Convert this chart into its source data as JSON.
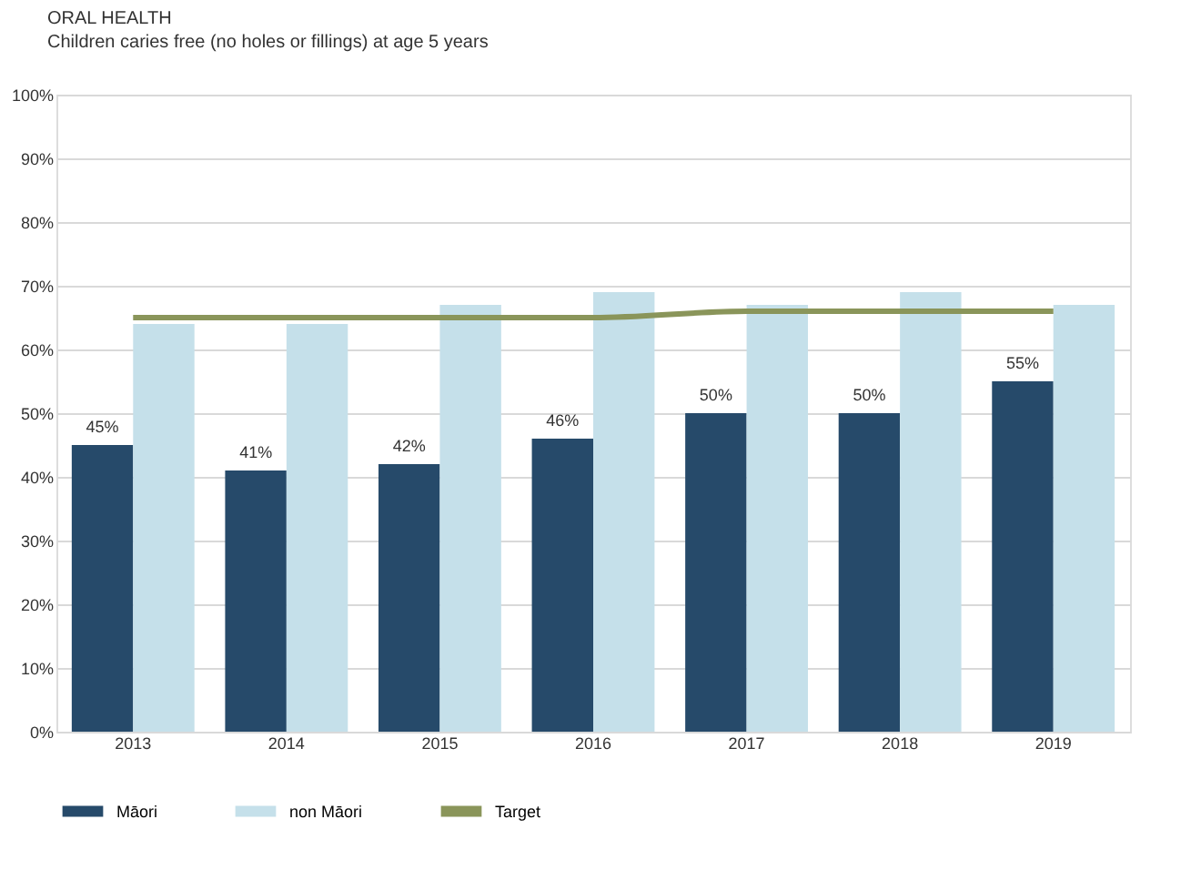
{
  "chart_data": {
    "type": "bar",
    "title": "ORAL HEALTH",
    "subtitle": "Children caries free (no holes or fillings) at age 5 years",
    "categories": [
      "2013",
      "2014",
      "2015",
      "2016",
      "2017",
      "2018",
      "2019"
    ],
    "series": [
      {
        "name": "Māori",
        "color": "#264a6a",
        "values": [
          45,
          41,
          42,
          46,
          50,
          50,
          55
        ],
        "value_labels": [
          "45%",
          "41%",
          "42%",
          "46%",
          "50%",
          "50%",
          "55%"
        ]
      },
      {
        "name": "non Māori",
        "color": "#c5e0ea",
        "values": [
          64,
          64,
          67,
          69,
          67,
          69,
          67
        ]
      },
      {
        "name": "Target",
        "type": "line",
        "color": "#8a955a",
        "values": [
          65,
          65,
          65,
          65,
          66,
          66,
          66
        ]
      }
    ],
    "ylim": [
      0,
      100
    ],
    "yticks": [
      {
        "value": 0,
        "label": "0%"
      },
      {
        "value": 10,
        "label": "10%"
      },
      {
        "value": 20,
        "label": "20%"
      },
      {
        "value": 30,
        "label": "30%"
      },
      {
        "value": 40,
        "label": "40%"
      },
      {
        "value": 50,
        "label": "50%"
      },
      {
        "value": 60,
        "label": "60%"
      },
      {
        "value": 70,
        "label": "70%"
      },
      {
        "value": 80,
        "label": "80%"
      },
      {
        "value": 90,
        "label": "90%"
      },
      {
        "value": 100,
        "label": "100%"
      }
    ],
    "grid": "y",
    "legend": "bottom"
  }
}
